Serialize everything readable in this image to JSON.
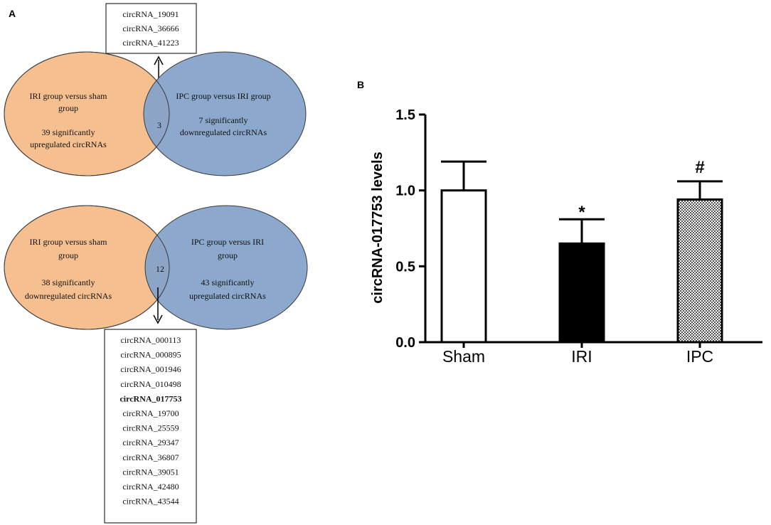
{
  "panel_a": {
    "letter": "A",
    "top_box": [
      "circRNA_19091",
      "circRNA_36666",
      "circRNA_41223"
    ],
    "venn_top": {
      "left_lines": [
        "IRI group versus sham",
        "group",
        "",
        "39 significantly",
        "upregulated circRNAs"
      ],
      "right_lines": [
        "IPC group versus IRI group",
        "",
        "7 significantly",
        "downregulated circRNAs"
      ],
      "overlap": "3"
    },
    "venn_bottom": {
      "left_lines": [
        "IRI group versus sham",
        "group",
        "",
        "38 significantly",
        "downregulated circRNAs"
      ],
      "right_lines": [
        "IPC group versus IRI",
        "group",
        "",
        "43 significantly",
        "upregulated circRNAs"
      ],
      "overlap": "12"
    },
    "bottom_box": [
      "circRNA_000113",
      "circRNA_000895",
      "circRNA_001946",
      "circRNA_010498",
      "circRNA_017753",
      "circRNA_19700",
      "circRNA_25559",
      "circRNA_29347",
      "circRNA_36807",
      "circRNA_39051",
      "circRNA_42480",
      "circRNA_43544"
    ],
    "bold_item": "circRNA_017753",
    "colors": {
      "orange": "#f5bf90",
      "blue": "#86a3ca"
    }
  },
  "chart_data": {
    "type": "bar",
    "panel_letter": "B",
    "categories": [
      "Sham",
      "IRI",
      "IPC"
    ],
    "values": [
      1.0,
      0.65,
      0.94
    ],
    "errors": [
      0.19,
      0.16,
      0.12
    ],
    "annotations": [
      "",
      "*",
      "#"
    ],
    "fills": [
      "white",
      "black",
      "checker"
    ],
    "ylabel": "circRNA-017753 levels",
    "xlabel": "",
    "ylim": [
      0,
      1.5
    ],
    "yticks": [
      0.0,
      0.5,
      1.0,
      1.5
    ],
    "ytick_labels": [
      "0.0",
      "0.5",
      "1.0",
      "1.5"
    ]
  }
}
